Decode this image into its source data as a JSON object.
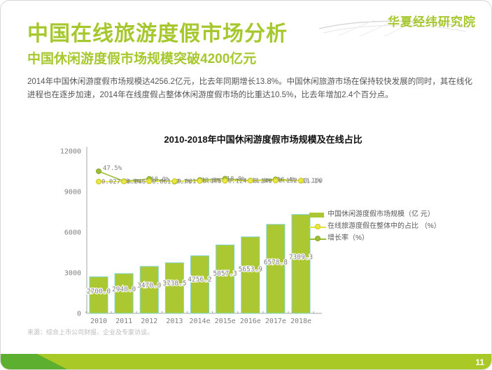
{
  "slide": {
    "logo_text": "华夏经纬研究院",
    "title": "中国在线旅游度假市场分析",
    "subtitle": "中国休闲游度假市场规模突破4200亿元",
    "body": "2014年中国休闲游度假市场规模达4256.2亿元，比去年同期增长13.8%。中国休闲旅游市场在保持较快发展的同时，其在线化进程也在逐步加速，2014年在线度假占整体休闲游度假市场的比重达10.5%，比去年增加2.4个百分点。",
    "source": "来源：综合上市公司财报、企业及专家访谈。",
    "page_number": "11"
  },
  "chart_data": {
    "type": "bar",
    "title": "2010-2018年中国休闲游度假市场规模及在线占比",
    "categories": [
      "2010",
      "2011",
      "2012",
      "2013",
      "2014e",
      "2015e",
      "2016e",
      "2017e",
      "2018e"
    ],
    "series": [
      {
        "name": "中国休闲游度假市场规模（亿\n元）",
        "type": "bar",
        "values": [
          2700.0,
          2940.0,
          3470.0,
          3738.5,
          4256.2,
          5057.3,
          5653.9,
          6578.8,
          7309.3
        ],
        "labels": [
          "2700.0",
          "2940.0",
          "3470.0",
          "3738.5",
          "4256.2",
          "5057.3",
          "5653.9",
          "6578.8",
          "7309.3"
        ],
        "color": "#abc832",
        "border_color": "#7fd2cc"
      },
      {
        "name": "在线旅游度假在整体中的占比\n（%）",
        "type": "line",
        "values": [
          0.027,
          0.046,
          0.061,
          0.081,
          0.105,
          0.124,
          0.14,
          0.152,
          0.16
        ],
        "labels": [
          "0.027",
          "0.046",
          "0.061",
          "0.081",
          "0.105",
          "0.124",
          "0.140",
          "0.152",
          "0.160"
        ],
        "color": "#e6e431",
        "marker_fill": "#eae73f",
        "marker_stroke": "#c9c428"
      },
      {
        "name": "增长率（%）",
        "type": "line",
        "values": [
          47.5,
          8.9,
          18.0,
          7.7,
          13.8,
          18.8,
          11.8,
          16.4,
          11.1
        ],
        "labels": [
          "47.5%",
          "8.9%",
          "18.0%",
          "7.7%",
          "13.8%",
          "18.8%",
          "11.8%",
          "16.4%",
          "11.1%"
        ],
        "color": "#9cbe35",
        "marker_fill": "#9cbe35",
        "marker_stroke": "#8aa92c"
      }
    ],
    "ylabel": "",
    "xlabel": "",
    "ylim": [
      0,
      12000
    ],
    "yticks": [
      0,
      3000,
      6000,
      9000,
      12000
    ],
    "grid": false,
    "legend_position": "right"
  }
}
